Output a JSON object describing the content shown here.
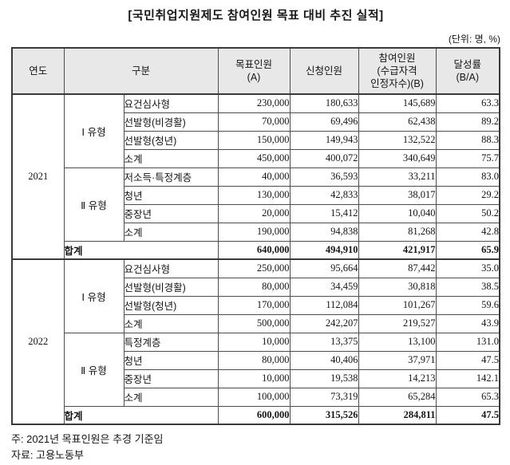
{
  "title": "[국민취업지원제도 참여인원 목표 대비 추진 실적]",
  "unit_note": "(단위: 명, %)",
  "table": {
    "headers": {
      "year": "연도",
      "category": "구분",
      "target": "목표인원\n(A)",
      "applied": "신청인원",
      "participants": "참여인원\n(수급자격\n인정자수)(B)",
      "rate": "달성률\n(B/A)"
    },
    "sections": [
      {
        "year": "2021",
        "groups": [
          {
            "type": "Ⅰ 유형",
            "rows": [
              {
                "label": "요건심사형",
                "target": "230,000",
                "applied": "180,633",
                "participants": "145,689",
                "rate": "63.3"
              },
              {
                "label": "선발형(비경활)",
                "target": "70,000",
                "applied": "69,496",
                "participants": "62,438",
                "rate": "89.2"
              },
              {
                "label": "선발형(청년)",
                "target": "150,000",
                "applied": "149,943",
                "participants": "132,522",
                "rate": "88.3"
              },
              {
                "label": "소계",
                "target": "450,000",
                "applied": "400,072",
                "participants": "340,649",
                "rate": "75.7"
              }
            ]
          },
          {
            "type": "Ⅱ 유형",
            "rows": [
              {
                "label": "저소득·특정계층",
                "target": "40,000",
                "applied": "36,593",
                "participants": "33,211",
                "rate": "83.0"
              },
              {
                "label": "청년",
                "target": "130,000",
                "applied": "42,833",
                "participants": "38,017",
                "rate": "29.2"
              },
              {
                "label": "중장년",
                "target": "20,000",
                "applied": "15,412",
                "participants": "10,040",
                "rate": "50.2"
              },
              {
                "label": "소계",
                "target": "190,000",
                "applied": "94,838",
                "participants": "81,268",
                "rate": "42.8"
              }
            ]
          }
        ],
        "total": {
          "label": "합계",
          "target": "640,000",
          "applied": "494,910",
          "participants": "421,917",
          "rate": "65.9"
        }
      },
      {
        "year": "2022",
        "groups": [
          {
            "type": "Ⅰ 유형",
            "rows": [
              {
                "label": "요건심사형",
                "target": "250,000",
                "applied": "95,664",
                "participants": "87,442",
                "rate": "35.0"
              },
              {
                "label": "선발형(비경활)",
                "target": "80,000",
                "applied": "34,459",
                "participants": "30,818",
                "rate": "38.5"
              },
              {
                "label": "선발형(청년)",
                "target": "170,000",
                "applied": "112,084",
                "participants": "101,267",
                "rate": "59.6"
              },
              {
                "label": "소계",
                "target": "500,000",
                "applied": "242,207",
                "participants": "219,527",
                "rate": "43.9"
              }
            ]
          },
          {
            "type": "Ⅱ 유형",
            "rows": [
              {
                "label": "특정계층",
                "target": "10,000",
                "applied": "13,375",
                "participants": "13,100",
                "rate": "131.0"
              },
              {
                "label": "청년",
                "target": "80,000",
                "applied": "40,406",
                "participants": "37,971",
                "rate": "47.5"
              },
              {
                "label": "중장년",
                "target": "10,000",
                "applied": "19,538",
                "participants": "14,213",
                "rate": "142.1"
              },
              {
                "label": "소계",
                "target": "100,000",
                "applied": "73,319",
                "participants": "65,284",
                "rate": "65.3"
              }
            ]
          }
        ],
        "total": {
          "label": "합계",
          "target": "600,000",
          "applied": "315,526",
          "participants": "284,811",
          "rate": "47.5"
        }
      }
    ]
  },
  "notes": [
    "주: 2021년 목표인원은 추경 기준임",
    "자료: 고용노동부"
  ],
  "colors": {
    "header_bg": "#e8e8e8",
    "border": "#4d4d4d",
    "text": "#161616"
  }
}
